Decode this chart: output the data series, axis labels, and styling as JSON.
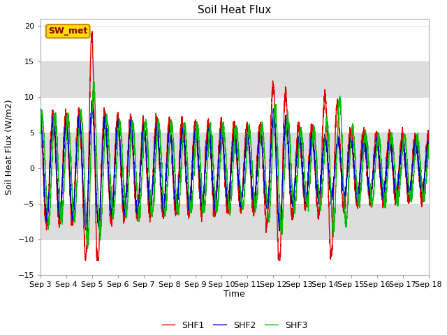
{
  "title": "Soil Heat Flux",
  "ylabel": "Soil Heat Flux (W/m2)",
  "xlabel": "Time",
  "ylim": [
    -15,
    21
  ],
  "yticks": [
    -15,
    -10,
    -5,
    0,
    5,
    10,
    15,
    20
  ],
  "line_colors": [
    "#dd0000",
    "#0000cc",
    "#00bb00"
  ],
  "line_labels": [
    "SHF1",
    "SHF2",
    "SHF3"
  ],
  "annotation_text": "SW_met",
  "annotation_bg": "#ffdd00",
  "annotation_border": "#cc8800",
  "annotation_text_color": "#880000",
  "xticklabels": [
    "Sep 3",
    "Sep 4",
    "Sep 5",
    "Sep 6",
    "Sep 7",
    "Sep 8",
    "Sep 9",
    "Sep 10",
    "Sep 11",
    "Sep 12",
    "Sep 13",
    "Sep 14",
    "Sep 15",
    "Sep 16",
    "Sep 17",
    "Sep 18"
  ],
  "band_color": "#dddddd",
  "background_color": "#ffffff"
}
